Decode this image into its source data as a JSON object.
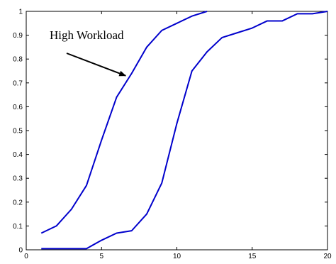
{
  "chart_data": {
    "type": "line",
    "title": "",
    "xlabel": "",
    "ylabel": "",
    "xlim": [
      0,
      20
    ],
    "ylim": [
      0,
      1
    ],
    "xticks": [
      0,
      5,
      10,
      15,
      20
    ],
    "yticks": [
      0,
      0.1,
      0.2,
      0.3,
      0.4,
      0.5,
      0.6,
      0.7,
      0.8,
      0.9,
      1
    ],
    "grid": false,
    "legend": "none",
    "series": [
      {
        "color": "#0000cc",
        "x": [
          1,
          2,
          3,
          4,
          5,
          6,
          7,
          8,
          9,
          10,
          11,
          12
        ],
        "y": [
          0.07,
          0.1,
          0.17,
          0.27,
          0.46,
          0.64,
          0.74,
          0.85,
          0.92,
          0.95,
          0.98,
          1.0
        ]
      },
      {
        "color": "#0000cc",
        "x": [
          1,
          2,
          3,
          4,
          5,
          6,
          7,
          8,
          9,
          10,
          11,
          12,
          13,
          14,
          15,
          16,
          17,
          18,
          19,
          20
        ],
        "y": [
          0.005,
          0.005,
          0.005,
          0.005,
          0.04,
          0.07,
          0.08,
          0.15,
          0.28,
          0.53,
          0.75,
          0.83,
          0.89,
          0.91,
          0.93,
          0.96,
          0.96,
          0.99,
          0.99,
          1.0
        ]
      }
    ],
    "annotations": [
      {
        "text": "High Workload",
        "arrow_to": {
          "x": 6.6,
          "y": 0.73
        }
      }
    ]
  }
}
